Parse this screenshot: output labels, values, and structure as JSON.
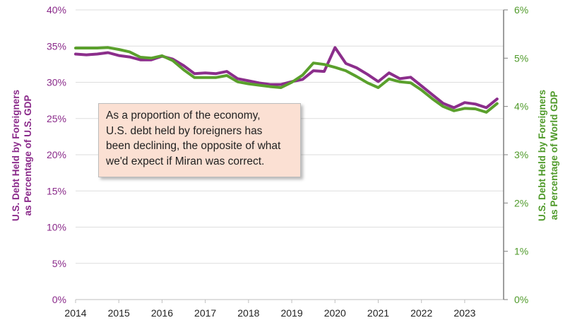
{
  "chart_data": {
    "type": "line",
    "title": "",
    "ylabel_left": [
      "U.S. Debt Held by Foreigners",
      "as Percentage of U.S. GDP"
    ],
    "ylabel_right": [
      "U.S. Debt Held by Foreigners",
      "as Percentage of World GDP"
    ],
    "x_ticks": [
      "2014",
      "2015",
      "2016",
      "2017",
      "2018",
      "2019",
      "2020",
      "2021",
      "2022",
      "2023"
    ],
    "x_range": [
      2014,
      2023.9
    ],
    "y_left": {
      "range": [
        0,
        40
      ],
      "ticks": [
        "0%",
        "5%",
        "10%",
        "15%",
        "20%",
        "25%",
        "30%",
        "35%",
        "40%"
      ],
      "values": [
        0,
        5,
        10,
        15,
        20,
        25,
        30,
        35,
        40
      ]
    },
    "y_right": {
      "range": [
        0,
        6
      ],
      "ticks": [
        "0%",
        "1%",
        "2%",
        "3%",
        "4%",
        "5%",
        "6%"
      ],
      "values": [
        0,
        1,
        2,
        3,
        4,
        5,
        6
      ]
    },
    "grid": true,
    "series": [
      {
        "name": "U.S. Debt Held by Foreigners as Percentage of U.S. GDP",
        "axis": "left",
        "color": "#8b2e8b",
        "x": [
          2014.0,
          2014.25,
          2014.5,
          2014.75,
          2015.0,
          2015.25,
          2015.5,
          2015.75,
          2016.0,
          2016.25,
          2016.5,
          2016.75,
          2017.0,
          2017.25,
          2017.5,
          2017.75,
          2018.0,
          2018.25,
          2018.5,
          2018.75,
          2019.0,
          2019.25,
          2019.5,
          2019.75,
          2020.0,
          2020.25,
          2020.5,
          2020.75,
          2021.0,
          2021.25,
          2021.5,
          2021.75,
          2022.0,
          2022.25,
          2022.5,
          2022.75,
          2023.0,
          2023.25,
          2023.5,
          2023.75
        ],
        "values": [
          33.9,
          33.8,
          33.9,
          34.1,
          33.7,
          33.5,
          33.1,
          33.1,
          33.6,
          33.2,
          32.3,
          31.2,
          31.3,
          31.2,
          31.5,
          30.5,
          30.2,
          29.9,
          29.7,
          29.7,
          30.1,
          30.4,
          31.6,
          31.5,
          34.8,
          32.6,
          32.0,
          31.1,
          30.1,
          31.3,
          30.5,
          30.7,
          29.5,
          28.3,
          27.1,
          26.5,
          27.2,
          27.0,
          26.5,
          27.7
        ]
      },
      {
        "name": "U.S. Debt Held by Foreigners as Percentage of World GDP",
        "axis": "right",
        "color": "#5aa02c",
        "x": [
          2014.0,
          2014.25,
          2014.5,
          2014.75,
          2015.0,
          2015.25,
          2015.5,
          2015.75,
          2016.0,
          2016.25,
          2016.5,
          2016.75,
          2017.0,
          2017.25,
          2017.5,
          2017.75,
          2018.0,
          2018.25,
          2018.5,
          2018.75,
          2019.0,
          2019.25,
          2019.5,
          2019.75,
          2020.0,
          2020.25,
          2020.5,
          2020.75,
          2021.0,
          2021.25,
          2021.5,
          2021.75,
          2022.0,
          2022.25,
          2022.5,
          2022.75,
          2023.0,
          2023.25,
          2023.5,
          2023.75
        ],
        "values": [
          5.21,
          5.21,
          5.21,
          5.22,
          5.18,
          5.13,
          5.02,
          5.0,
          5.05,
          4.95,
          4.76,
          4.6,
          4.6,
          4.6,
          4.64,
          4.51,
          4.47,
          4.44,
          4.41,
          4.39,
          4.5,
          4.65,
          4.9,
          4.87,
          4.81,
          4.74,
          4.62,
          4.49,
          4.39,
          4.57,
          4.51,
          4.49,
          4.34,
          4.16,
          4.0,
          3.91,
          3.96,
          3.95,
          3.88,
          4.06
        ]
      }
    ],
    "annotation": "As a proportion of the economy, U.S. debt held by foreigners has been declining, the opposite of what we'd expect if Miran was correct."
  },
  "callout_lines": [
    "As a proportion of the economy,",
    "U.S. debt held by foreigners has",
    "been declining, the opposite of what",
    "we'd expect if Miran was correct."
  ]
}
